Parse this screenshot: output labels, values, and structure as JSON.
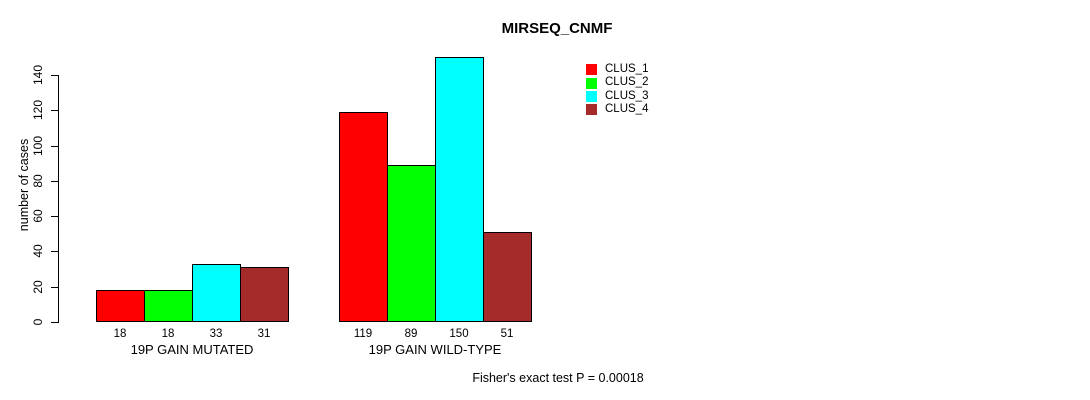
{
  "chart_data": {
    "type": "bar",
    "title": "MIRSEQ_CNMF",
    "ylabel": "number of cases",
    "ylim": [
      0,
      150
    ],
    "yticks": [
      0,
      20,
      40,
      60,
      80,
      100,
      120,
      140
    ],
    "grid": false,
    "legend_position": "top-right",
    "categories": [
      "19P GAIN MUTATED",
      "19P GAIN WILD-TYPE"
    ],
    "series": [
      {
        "name": "CLUS_1",
        "color": "#ff0000",
        "values": [
          18,
          119
        ]
      },
      {
        "name": "CLUS_2",
        "color": "#00ff00",
        "values": [
          18,
          89
        ]
      },
      {
        "name": "CLUS_3",
        "color": "#00ffff",
        "values": [
          33,
          150
        ]
      },
      {
        "name": "CLUS_4",
        "color": "#a52a2a",
        "values": [
          31,
          51
        ]
      }
    ],
    "footnote": "Fisher's exact test P = 0.00018"
  }
}
